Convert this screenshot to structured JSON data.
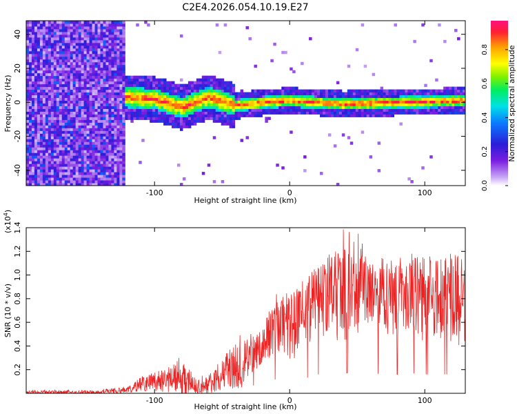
{
  "title": "C2E4.2026.054.10.19.E27",
  "chart_data": [
    {
      "type": "heatmap",
      "name": "spectrogram",
      "xlabel": "Height of straight line (km)",
      "ylabel": "Frequency (Hz)",
      "xlim": [
        -195,
        130
      ],
      "ylim": [
        -49,
        48
      ],
      "xticks": [
        -100,
        0,
        100
      ],
      "yticks": [
        -40,
        -20,
        0,
        20,
        40
      ],
      "colorbar": {
        "label": "Normalized spectral amplitude",
        "range": [
          0,
          0.97
        ],
        "ticks": [
          0.0,
          0.2,
          0.4,
          0.6,
          0.8
        ]
      },
      "regions": [
        {
          "description": "broadband noise",
          "x_range": [
            -195,
            -122
          ],
          "y_range": [
            -49,
            48
          ],
          "amplitude": "0.05-0.35"
        },
        {
          "description": "signal band near 0 Hz",
          "x_range": [
            -122,
            130
          ],
          "y_center": [
            [
              -118,
              3
            ],
            [
              -100,
              2
            ],
            [
              -80,
              -3
            ],
            [
              -60,
              3
            ],
            [
              -40,
              -2
            ],
            [
              -20,
              0
            ],
            [
              0,
              1
            ],
            [
              40,
              -1
            ],
            [
              80,
              0
            ],
            [
              130,
              1
            ]
          ],
          "amplitude": "0.5-0.97"
        }
      ]
    },
    {
      "type": "line",
      "name": "snr",
      "xlabel": "Height of straight line (km)",
      "ylabel": "SNR (10 * v/v)",
      "y_multiplier": "(x10^4)",
      "y_multiplier_base": "(x10",
      "y_multiplier_exp": "4",
      "y_multiplier_close": ")",
      "xlim": [
        -195,
        130
      ],
      "ylim": [
        0,
        1.4
      ],
      "xticks": [
        -100,
        0,
        100
      ],
      "yticks": [
        0.2,
        0.4,
        0.6,
        0.8,
        1.0,
        1.2,
        1.4
      ],
      "color": "#ee2222",
      "x": [
        -195,
        -170,
        -150,
        -130,
        -120,
        -110,
        -100,
        -90,
        -80,
        -70,
        -60,
        -50,
        -40,
        -30,
        -20,
        -10,
        0,
        10,
        20,
        30,
        40,
        50,
        60,
        70,
        80,
        90,
        100,
        110,
        120,
        130
      ],
      "envelope_max": [
        0.03,
        0.03,
        0.03,
        0.05,
        0.06,
        0.14,
        0.2,
        0.24,
        0.32,
        0.17,
        0.15,
        0.3,
        0.5,
        0.5,
        0.6,
        0.9,
        0.95,
        1.0,
        1.15,
        1.25,
        1.4,
        1.4,
        1.15,
        1.15,
        1.25,
        1.2,
        1.3,
        1.2,
        1.3,
        1.3
      ],
      "typical": [
        0.01,
        0.01,
        0.01,
        0.02,
        0.03,
        0.07,
        0.1,
        0.11,
        0.12,
        0.07,
        0.06,
        0.15,
        0.22,
        0.3,
        0.4,
        0.6,
        0.55,
        0.6,
        0.8,
        0.8,
        0.85,
        0.9,
        0.85,
        0.8,
        0.8,
        0.85,
        0.8,
        0.8,
        0.8,
        0.8
      ]
    }
  ]
}
